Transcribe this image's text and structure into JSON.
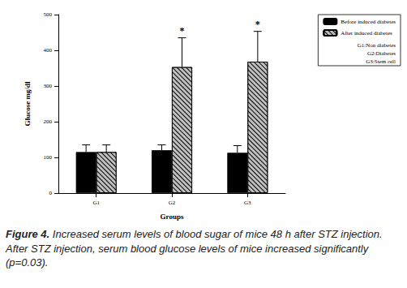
{
  "chart_data": {
    "type": "bar",
    "x_label": "Groups",
    "y_label": "Glucose mg/dl",
    "categories": [
      "G1",
      "G2",
      "G3"
    ],
    "series": [
      {
        "name": "Before induced diabetes",
        "color": "#000000",
        "values": [
          115,
          120,
          113
        ],
        "errors": [
          20,
          15,
          20
        ]
      },
      {
        "name": "After induced diabetes",
        "color": "#bfbfbf",
        "values": [
          115,
          353,
          368
        ],
        "errors": [
          20,
          82,
          85
        ]
      }
    ],
    "ylim": [
      0,
      500
    ],
    "yticks": [
      0,
      100,
      200,
      300,
      400,
      500
    ],
    "grid": false,
    "legend": "upper right",
    "legend_notes": [
      "G1:Non diabetes",
      "G2:Diabetes",
      "G3:Stem cell"
    ],
    "annotations": [
      {
        "text": "*",
        "category": "G2",
        "series": "After induced diabetes"
      },
      {
        "text": "*",
        "category": "G3",
        "series": "After induced diabetes"
      }
    ],
    "caption_label": "Figure 4.",
    "caption": "Increased serum levels of blood sugar of mice 48 h after STZ injection. After STZ injection, serum blood glucose levels of mice increased significantly (p=0.03)."
  }
}
